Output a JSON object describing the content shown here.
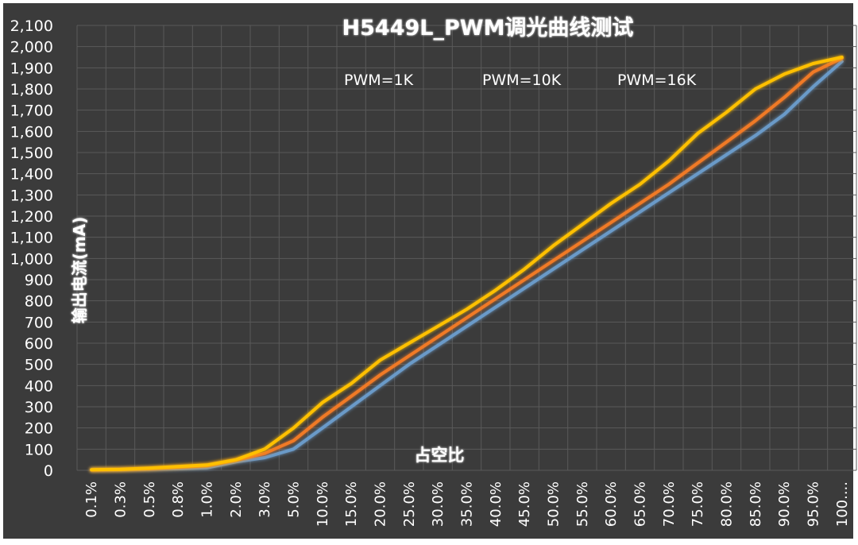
{
  "chart_data": {
    "type": "line",
    "title": "H5449L_PWM调光曲线测试",
    "xlabel": "占空比",
    "ylabel": "输出电流(mA)",
    "ylim": [
      0,
      2100
    ],
    "y_ticks": [
      0,
      100,
      200,
      300,
      400,
      500,
      600,
      700,
      800,
      900,
      1000,
      1100,
      1200,
      1300,
      1400,
      1500,
      1600,
      1700,
      1800,
      1900,
      2000,
      2100
    ],
    "y_tick_labels": [
      "0",
      "100",
      "200",
      "300",
      "400",
      "500",
      "600",
      "700",
      "800",
      "900",
      "1,000",
      "1,100",
      "1,200",
      "1,300",
      "1,400",
      "1,500",
      "1,600",
      "1,700",
      "1,800",
      "1,900",
      "2,000",
      "2,100"
    ],
    "categories": [
      "0.1%",
      "0.3%",
      "0.5%",
      "0.8%",
      "1.0%",
      "2.0%",
      "3.0%",
      "5.0%",
      "10.0%",
      "15.0%",
      "20.0%",
      "25.0%",
      "30.0%",
      "35.0%",
      "40.0%",
      "45.0%",
      "50.0%",
      "55.0%",
      "60.0%",
      "65.0%",
      "70.0%",
      "75.0%",
      "80.0%",
      "85.0%",
      "90.0%",
      "95.0%",
      "100...."
    ],
    "grid": true,
    "legend_position": "top",
    "series": [
      {
        "name": "PWM=1K",
        "color": "#6b9ac8",
        "values": [
          2,
          3,
          5,
          8,
          12,
          40,
          60,
          100,
          200,
          300,
          400,
          500,
          590,
          680,
          770,
          860,
          950,
          1040,
          1130,
          1220,
          1310,
          1400,
          1490,
          1580,
          1680,
          1810,
          1930
        ]
      },
      {
        "name": "PWM=10K",
        "color": "#f07a25",
        "values": [
          2,
          4,
          8,
          15,
          22,
          48,
          80,
          140,
          250,
          350,
          450,
          540,
          630,
          720,
          810,
          900,
          990,
          1080,
          1170,
          1260,
          1350,
          1450,
          1550,
          1650,
          1760,
          1880,
          1945
        ]
      },
      {
        "name": "PWM=16K",
        "color": "#ffc000",
        "values": [
          3,
          5,
          10,
          18,
          25,
          50,
          100,
          200,
          320,
          410,
          520,
          600,
          680,
          760,
          850,
          950,
          1060,
          1160,
          1260,
          1350,
          1460,
          1590,
          1690,
          1800,
          1870,
          1920,
          1950
        ]
      }
    ]
  }
}
